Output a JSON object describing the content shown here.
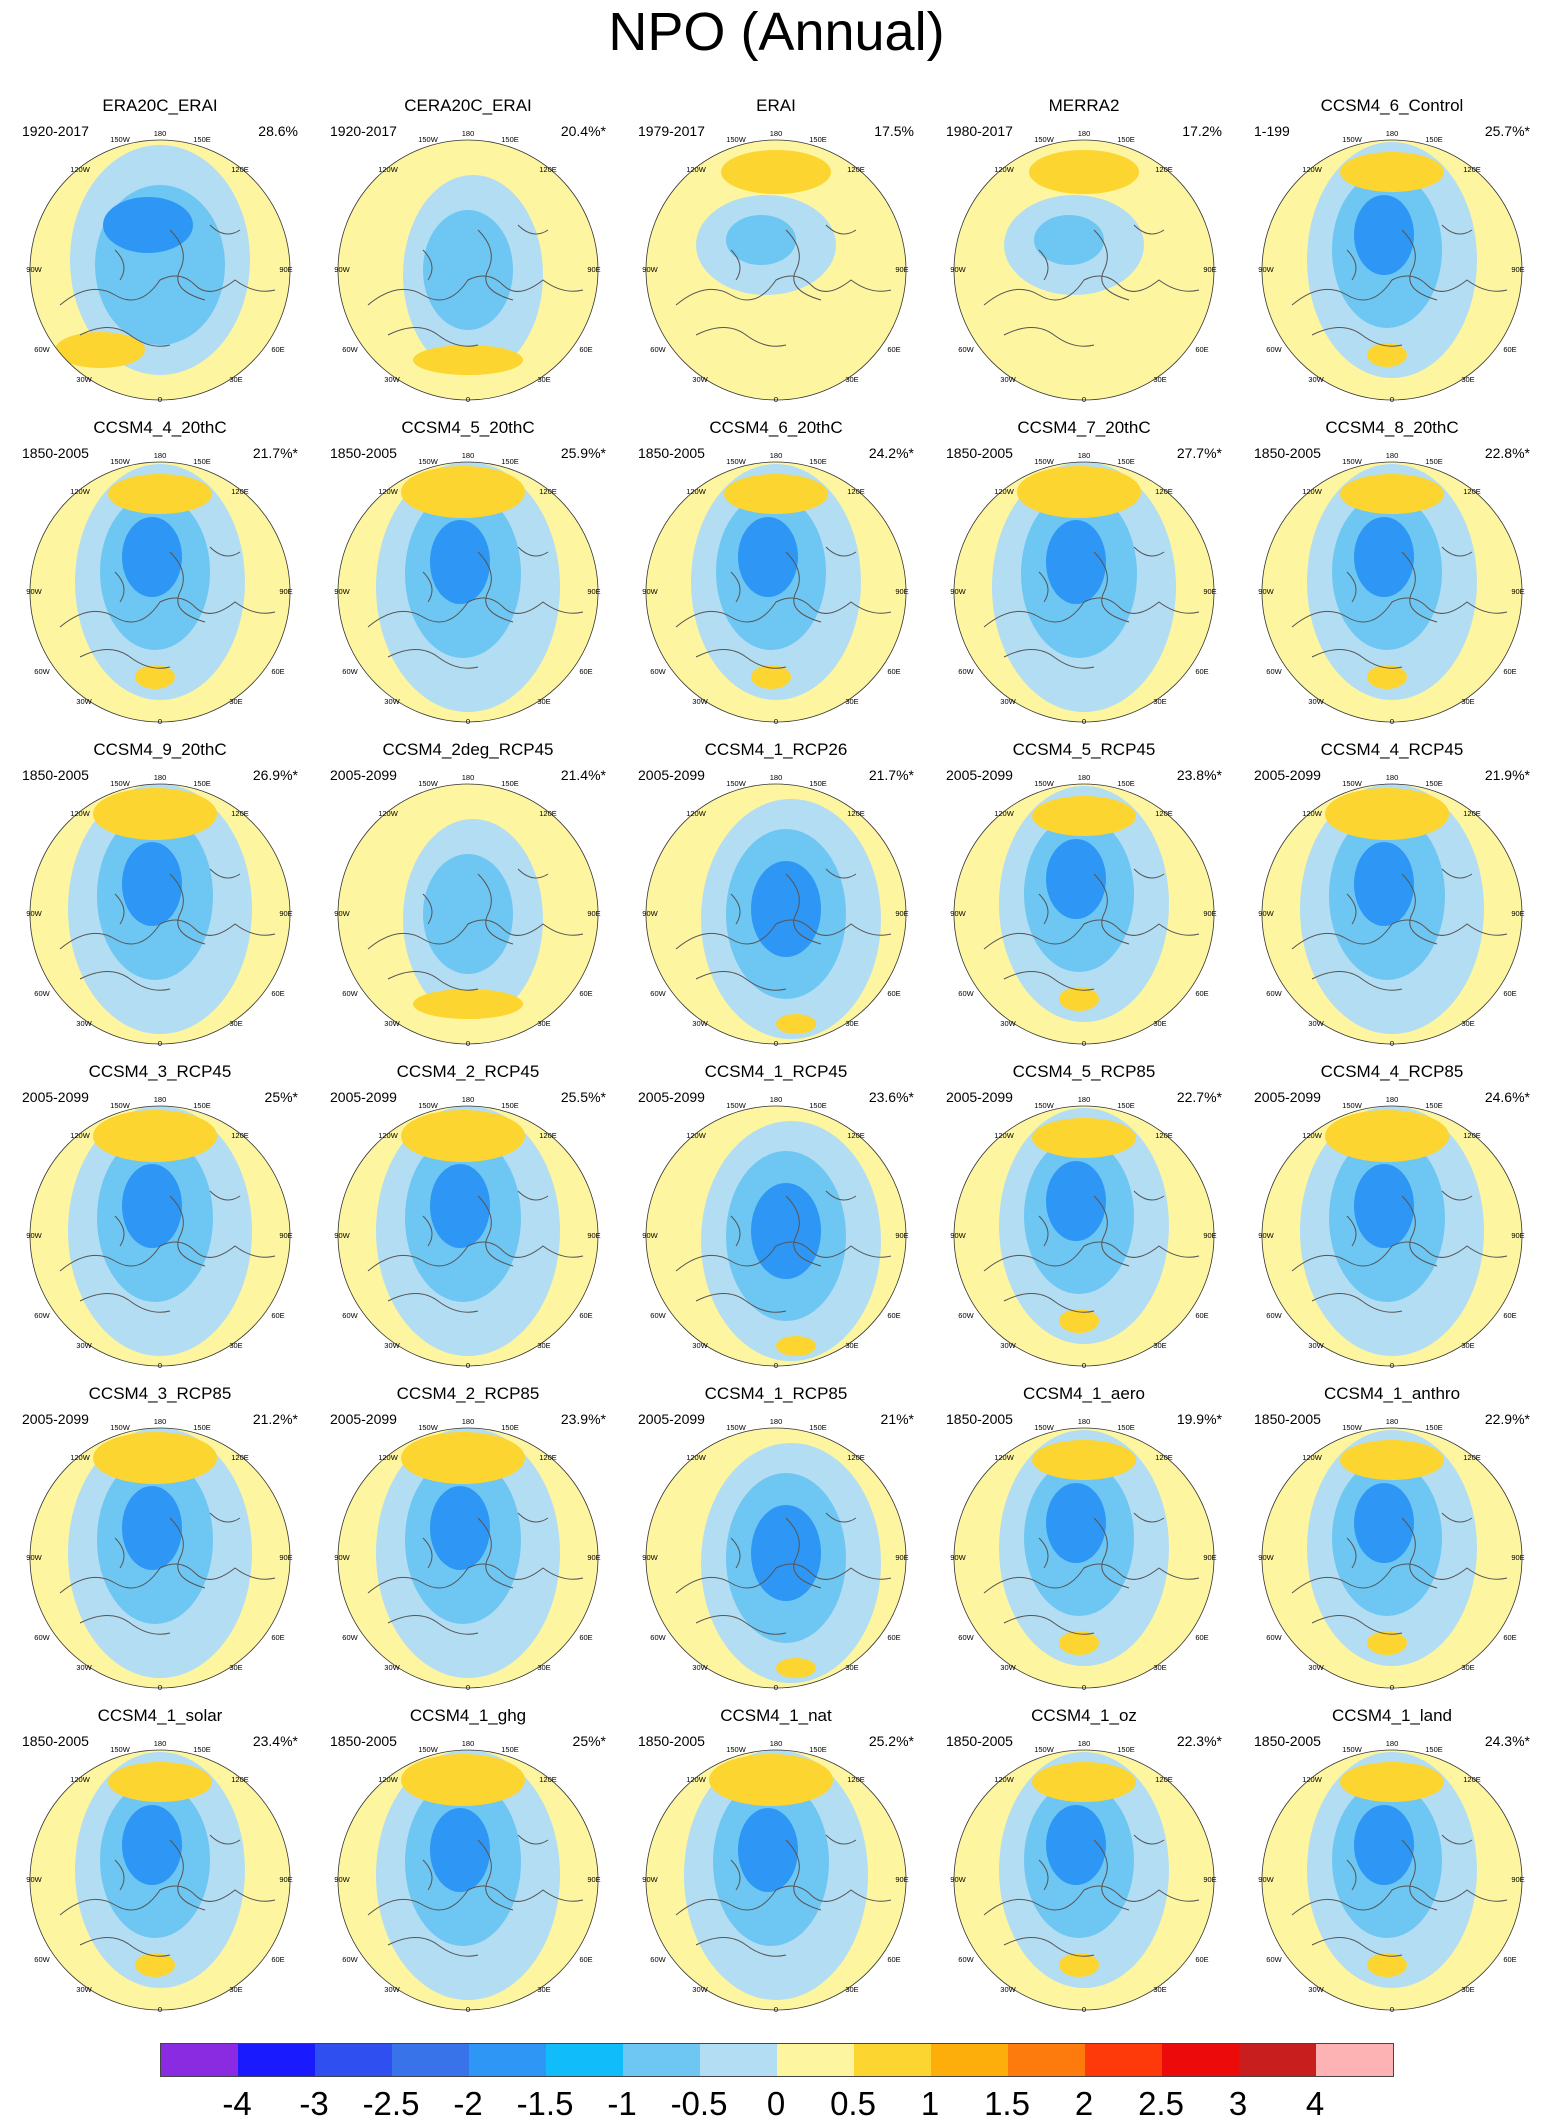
{
  "title": "NPO (Annual)",
  "grid_labels": [
    "180",
    "150W",
    "150E",
    "120W",
    "120E",
    "90W",
    "90E",
    "60W",
    "60E",
    "30W",
    "30E",
    "0"
  ],
  "panels": [
    {
      "name": "ERA20C_ERAI",
      "period": "1920-2017",
      "pct": "28.6%",
      "variant": 0
    },
    {
      "name": "CERA20C_ERAI",
      "period": "1920-2017",
      "pct": "20.4%*",
      "variant": 1
    },
    {
      "name": "ERAI",
      "period": "1979-2017",
      "pct": "17.5%",
      "variant": 2
    },
    {
      "name": "MERRA2",
      "period": "1980-2017",
      "pct": "17.2%",
      "variant": 2
    },
    {
      "name": "CCSM4_6_Control",
      "period": "1-199",
      "pct": "25.7%*",
      "variant": 3
    },
    {
      "name": "CCSM4_4_20thC",
      "period": "1850-2005",
      "pct": "21.7%*",
      "variant": 3
    },
    {
      "name": "CCSM4_5_20thC",
      "period": "1850-2005",
      "pct": "25.9%*",
      "variant": 4
    },
    {
      "name": "CCSM4_6_20thC",
      "period": "1850-2005",
      "pct": "24.2%*",
      "variant": 3
    },
    {
      "name": "CCSM4_7_20thC",
      "period": "1850-2005",
      "pct": "27.7%*",
      "variant": 4
    },
    {
      "name": "CCSM4_8_20thC",
      "period": "1850-2005",
      "pct": "22.8%*",
      "variant": 3
    },
    {
      "name": "CCSM4_9_20thC",
      "period": "1850-2005",
      "pct": "26.9%*",
      "variant": 4
    },
    {
      "name": "CCSM4_2deg_RCP45",
      "period": "2005-2099",
      "pct": "21.4%*",
      "variant": 1
    },
    {
      "name": "CCSM4_1_RCP26",
      "period": "2005-2099",
      "pct": "21.7%*",
      "variant": 5
    },
    {
      "name": "CCSM4_5_RCP45",
      "period": "2005-2099",
      "pct": "23.8%*",
      "variant": 3
    },
    {
      "name": "CCSM4_4_RCP45",
      "period": "2005-2099",
      "pct": "21.9%*",
      "variant": 4
    },
    {
      "name": "CCSM4_3_RCP45",
      "period": "2005-2099",
      "pct": "25%*",
      "variant": 4
    },
    {
      "name": "CCSM4_2_RCP45",
      "period": "2005-2099",
      "pct": "25.5%*",
      "variant": 4
    },
    {
      "name": "CCSM4_1_RCP45",
      "period": "2005-2099",
      "pct": "23.6%*",
      "variant": 5
    },
    {
      "name": "CCSM4_5_RCP85",
      "period": "2005-2099",
      "pct": "22.7%*",
      "variant": 3
    },
    {
      "name": "CCSM4_4_RCP85",
      "period": "2005-2099",
      "pct": "24.6%*",
      "variant": 4
    },
    {
      "name": "CCSM4_3_RCP85",
      "period": "2005-2099",
      "pct": "21.2%*",
      "variant": 4
    },
    {
      "name": "CCSM4_2_RCP85",
      "period": "2005-2099",
      "pct": "23.9%*",
      "variant": 4
    },
    {
      "name": "CCSM4_1_RCP85",
      "period": "2005-2099",
      "pct": "21%*",
      "variant": 5
    },
    {
      "name": "CCSM4_1_aero",
      "period": "1850-2005",
      "pct": "19.9%*",
      "variant": 3
    },
    {
      "name": "CCSM4_1_anthro",
      "period": "1850-2005",
      "pct": "22.9%*",
      "variant": 3
    },
    {
      "name": "CCSM4_1_solar",
      "period": "1850-2005",
      "pct": "23.4%*",
      "variant": 3
    },
    {
      "name": "CCSM4_1_ghg",
      "period": "1850-2005",
      "pct": "25%*",
      "variant": 4
    },
    {
      "name": "CCSM4_1_nat",
      "period": "1850-2005",
      "pct": "25.2%*",
      "variant": 4
    },
    {
      "name": "CCSM4_1_oz",
      "period": "1850-2005",
      "pct": "22.3%*",
      "variant": 3
    },
    {
      "name": "CCSM4_1_land",
      "period": "1850-2005",
      "pct": "24.3%*",
      "variant": 3
    }
  ],
  "colorbar": {
    "colors": [
      "#8a2be2",
      "#1a1aff",
      "#2f4ff0",
      "#3973ea",
      "#2e97f5",
      "#10bcfa",
      "#6ec6f2",
      "#b3ddf3",
      "#fdf5a0",
      "#fdd530",
      "#fdae0a",
      "#fd7b0c",
      "#ff3a0a",
      "#ec0a0a",
      "#c81e1e",
      "#fdb3b3"
    ],
    "ticks": [
      "-4",
      "-3",
      "-2.5",
      "-2",
      "-1.5",
      "-1",
      "-0.5",
      "0",
      "0.5",
      "1",
      "1.5",
      "2",
      "2.5",
      "3",
      "4"
    ]
  },
  "fill_colors": {
    "background": "#fdf5a0",
    "weak_negative": "#b3ddf3",
    "moderate_negative": "#6ec6f2",
    "strong_negative": "#2e97f5",
    "center_negative": "#3973ea",
    "positive": "#fdd530",
    "coastline": "#555555"
  }
}
